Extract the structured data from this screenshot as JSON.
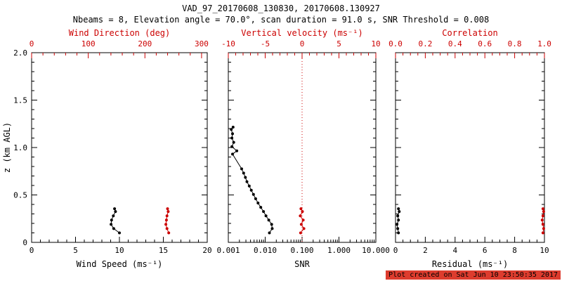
{
  "title": "VAD_97_20170608_130830, 20170608.130927",
  "subtitle": "Nbeams = 8, Elevation angle = 70.0°, scan duration = 91.0 s, SNR Threshold = 0.008",
  "footer": "Plot created on Sat Jun 10 23:50:35 2017",
  "colors": {
    "axis_black": "#000000",
    "axis_red": "#cc0000",
    "footer_bg": "#dd3c2e",
    "footer_text": "#000000"
  },
  "chart_data": [
    {
      "type": "scatter",
      "panel": "wind",
      "ylabel": "z (km AGL)",
      "ylim": [
        0,
        2
      ],
      "yticks": {
        "values": [
          0,
          0.5,
          1.0,
          1.5,
          2.0
        ],
        "labels": [
          "0",
          "0.5",
          "1.0",
          "1.5",
          "2.0"
        ],
        "minor_step": 0.1,
        "show_labels": true
      },
      "bottom_axis": {
        "label": "Wind Speed (ms⁻¹)",
        "lim": [
          0,
          20
        ],
        "ticks": [
          0,
          5,
          10,
          15,
          20
        ],
        "tick_labels": [
          "0",
          "5",
          "10",
          "15",
          "20"
        ],
        "minor_step": 1,
        "color": "black"
      },
      "top_axis": {
        "label": "Wind Direction (deg)",
        "lim": [
          0,
          310
        ],
        "ticks": [
          0,
          100,
          200,
          300
        ],
        "tick_labels": [
          "0",
          "100",
          "200",
          "300"
        ],
        "minor_step": 20,
        "color": "red"
      },
      "series": [
        {
          "name": "wind-speed",
          "axis": "bottom",
          "color": "black",
          "points": [
            [
              10.0,
              0.1
            ],
            [
              9.35,
              0.145
            ],
            [
              9.05,
              0.19
            ],
            [
              9.1,
              0.235
            ],
            [
              9.3,
              0.28
            ],
            [
              9.55,
              0.325
            ],
            [
              9.45,
              0.355
            ]
          ]
        },
        {
          "name": "wind-direction",
          "axis": "top",
          "color": "red",
          "points": [
            [
              242,
              0.1
            ],
            [
              239,
              0.145
            ],
            [
              237,
              0.19
            ],
            [
              238,
              0.235
            ],
            [
              239,
              0.28
            ],
            [
              241,
              0.325
            ],
            [
              240,
              0.355
            ]
          ]
        }
      ]
    },
    {
      "type": "scatter",
      "panel": "snr",
      "ylim": [
        0,
        2
      ],
      "yticks": {
        "values": [
          0,
          0.5,
          1.0,
          1.5,
          2.0
        ],
        "labels": [
          "0",
          "0.5",
          "1.0",
          "1.5",
          "2.0"
        ],
        "minor_step": 0.1,
        "show_labels": false
      },
      "bottom_axis": {
        "label": "SNR",
        "scale": "log",
        "lim": [
          0.001,
          10
        ],
        "ticks": [
          0.001,
          0.01,
          0.1,
          1,
          10
        ],
        "tick_labels": [
          "0.001",
          "0.010",
          "0.100",
          "1.000",
          "10.000"
        ],
        "color": "black"
      },
      "top_axis": {
        "label": "Vertical velocity (ms⁻¹)",
        "lim": [
          -10,
          10
        ],
        "ticks": [
          -10,
          -5,
          0,
          5,
          10
        ],
        "tick_labels": [
          "-10",
          "-5",
          "0",
          "5",
          "10"
        ],
        "minor_step": 1,
        "color": "red"
      },
      "ref_lines": [
        {
          "axis": "top",
          "value": 0,
          "color": "red",
          "style": "dotted",
          "name": "zero-vertical-velocity"
        }
      ],
      "series": [
        {
          "name": "snr-profile",
          "axis": "bottom",
          "color": "black",
          "points": [
            [
              0.013,
              0.1
            ],
            [
              0.0155,
              0.145
            ],
            [
              0.015,
              0.19
            ],
            [
              0.0125,
              0.235
            ],
            [
              0.0105,
              0.28
            ],
            [
              0.009,
              0.325
            ],
            [
              0.0076,
              0.37
            ],
            [
              0.0064,
              0.415
            ],
            [
              0.0055,
              0.46
            ],
            [
              0.0048,
              0.505
            ],
            [
              0.0042,
              0.55
            ],
            [
              0.0037,
              0.595
            ],
            [
              0.0032,
              0.64
            ],
            [
              0.0029,
              0.685
            ],
            [
              0.0026,
              0.73
            ],
            [
              0.0023,
              0.775
            ],
            [
              0.0013,
              0.93
            ],
            [
              0.0017,
              0.965
            ],
            [
              0.00125,
              1.01
            ],
            [
              0.0014,
              1.055
            ],
            [
              0.00125,
              1.1
            ],
            [
              0.0013,
              1.145
            ],
            [
              0.0012,
              1.19
            ],
            [
              0.00135,
              1.215
            ]
          ]
        },
        {
          "name": "vertical-velocity",
          "axis": "top",
          "color": "red",
          "points": [
            [
              -0.2,
              0.1
            ],
            [
              0.25,
              0.145
            ],
            [
              -0.1,
              0.19
            ],
            [
              0.15,
              0.235
            ],
            [
              -0.25,
              0.28
            ],
            [
              0.05,
              0.325
            ],
            [
              -0.15,
              0.355
            ]
          ]
        }
      ]
    },
    {
      "type": "scatter",
      "panel": "residual",
      "ylim": [
        0,
        2
      ],
      "yticks": {
        "values": [
          0,
          0.5,
          1.0,
          1.5,
          2.0
        ],
        "labels": [
          "0",
          "0.5",
          "1.0",
          "1.5",
          "2.0"
        ],
        "minor_step": 0.1,
        "show_labels": false
      },
      "bottom_axis": {
        "label": "Residual (ms⁻¹)",
        "lim": [
          0,
          10
        ],
        "ticks": [
          0,
          2,
          4,
          6,
          8,
          10
        ],
        "tick_labels": [
          "0",
          "2",
          "4",
          "6",
          "8",
          "10"
        ],
        "minor_step": 0.5,
        "color": "black"
      },
      "top_axis": {
        "label": "Correlation",
        "lim": [
          0,
          1
        ],
        "ticks": [
          0,
          0.2,
          0.4,
          0.6,
          0.8,
          1.0
        ],
        "tick_labels": [
          "0.0",
          "0.2",
          "0.4",
          "0.6",
          "0.8",
          "1.0"
        ],
        "minor_step": 0.05,
        "color": "red"
      },
      "series": [
        {
          "name": "residual",
          "axis": "bottom",
          "color": "black",
          "points": [
            [
              0.2,
              0.1
            ],
            [
              0.15,
              0.145
            ],
            [
              0.1,
              0.19
            ],
            [
              0.2,
              0.235
            ],
            [
              0.15,
              0.28
            ],
            [
              0.25,
              0.325
            ],
            [
              0.2,
              0.355
            ]
          ]
        },
        {
          "name": "correlation",
          "axis": "top",
          "color": "red",
          "points": [
            [
              0.99,
              0.1
            ],
            [
              0.995,
              0.145
            ],
            [
              0.99,
              0.19
            ],
            [
              0.985,
              0.235
            ],
            [
              0.99,
              0.28
            ],
            [
              0.995,
              0.325
            ],
            [
              0.99,
              0.355
            ]
          ]
        }
      ]
    }
  ]
}
